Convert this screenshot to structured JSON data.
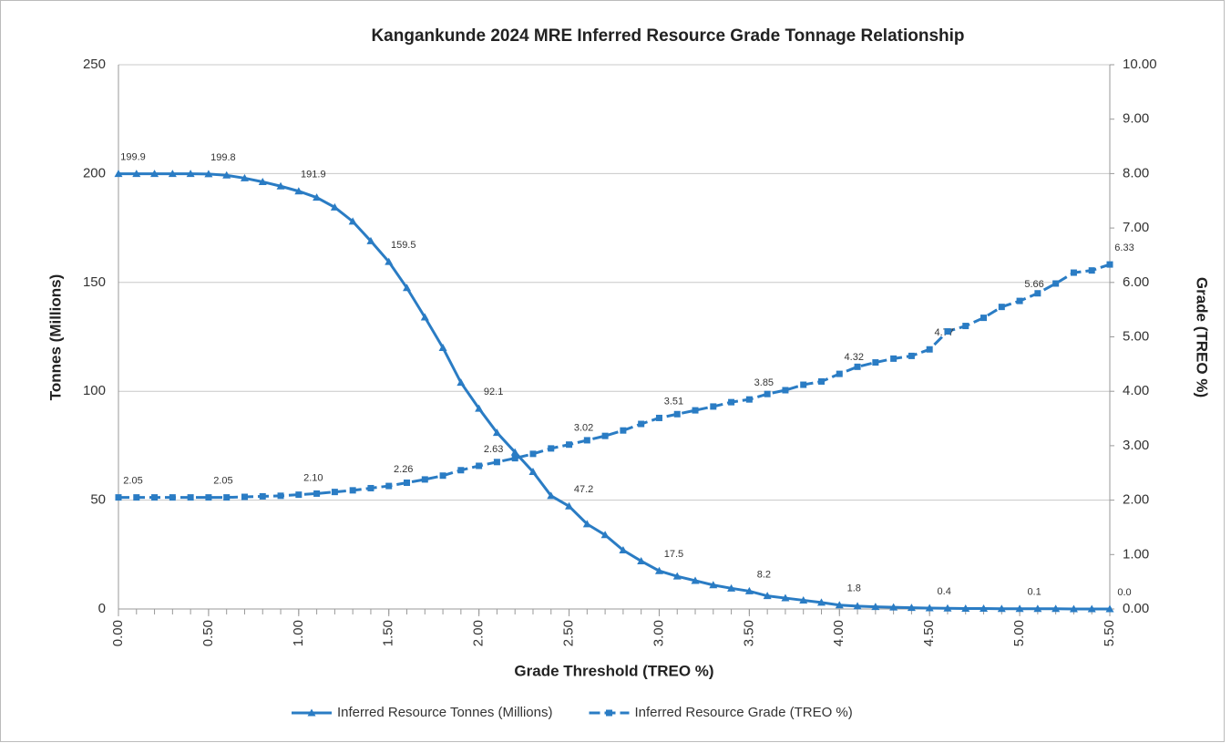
{
  "chart_data": {
    "type": "line",
    "title": "Kangankunde 2024 MRE Inferred Resource Grade Tonnage Relationship",
    "xlabel": "Grade Threshold (TREO %)",
    "ylabel": "Tonnes (Millions)",
    "y2label": "Grade (TREO %)",
    "x": [
      0,
      0.1,
      0.2,
      0.3,
      0.4,
      0.5,
      0.6,
      0.7,
      0.8,
      0.9,
      1,
      1.1,
      1.2,
      1.3,
      1.4,
      1.5,
      1.6,
      1.7,
      1.8,
      1.9,
      2,
      2.1,
      2.2,
      2.3,
      2.4,
      2.5,
      2.6,
      2.7,
      2.8,
      2.9,
      3,
      3.1,
      3.2,
      3.3,
      3.4,
      3.5,
      3.6,
      3.7,
      3.8,
      3.9,
      4,
      4.1,
      4.2,
      4.3,
      4.4,
      4.5,
      4.6,
      4.7,
      4.8,
      4.9,
      5,
      5.1,
      5.2,
      5.3,
      5.4,
      5.5
    ],
    "xlim": [
      0,
      5.5
    ],
    "xticks": [
      {
        "value": 0,
        "label": "0.00"
      },
      {
        "value": 0.5,
        "label": "0.50"
      },
      {
        "value": 1,
        "label": "1.00"
      },
      {
        "value": 1.5,
        "label": "1.50"
      },
      {
        "value": 2,
        "label": "2.00"
      },
      {
        "value": 2.5,
        "label": "2.50"
      },
      {
        "value": 3,
        "label": "3.00"
      },
      {
        "value": 3.5,
        "label": "3.50"
      },
      {
        "value": 4,
        "label": "4.00"
      },
      {
        "value": 4.5,
        "label": "4.50"
      },
      {
        "value": 5,
        "label": "5.00"
      },
      {
        "value": 5.5,
        "label": "5.50"
      }
    ],
    "ylim": [
      0,
      250
    ],
    "yticks": [
      0,
      50,
      100,
      150,
      200,
      250
    ],
    "y2lim": [
      0,
      10
    ],
    "y2ticks": [
      {
        "value": 0,
        "label": "0.00"
      },
      {
        "value": 1,
        "label": "1.00"
      },
      {
        "value": 2,
        "label": "2.00"
      },
      {
        "value": 3,
        "label": "3.00"
      },
      {
        "value": 4,
        "label": "4.00"
      },
      {
        "value": 5,
        "label": "5.00"
      },
      {
        "value": 6,
        "label": "6.00"
      },
      {
        "value": 7,
        "label": "7.00"
      },
      {
        "value": 8,
        "label": "8.00"
      },
      {
        "value": 9,
        "label": "9.00"
      },
      {
        "value": 10,
        "label": "10.00"
      }
    ],
    "grid": true,
    "legend": "bottom",
    "series": [
      {
        "name": "Inferred Resource Tonnes (Millions)",
        "color": "#2a7cc4",
        "marker": "triangle",
        "dash": false,
        "values": [
          199.9,
          199.9,
          199.9,
          199.9,
          199.9,
          199.8,
          199.2,
          197.9,
          196.2,
          194.2,
          191.9,
          189,
          184.5,
          178,
          169,
          159.5,
          147.5,
          134,
          120,
          104,
          92.1,
          81,
          72,
          63,
          52,
          47.2,
          39,
          34,
          27,
          22,
          17.5,
          15,
          13,
          11,
          9.5,
          8.2,
          6,
          5,
          4,
          3,
          1.8,
          1.3,
          1,
          0.8,
          0.6,
          0.4,
          0.3,
          0.2,
          0.2,
          0.1,
          0.1,
          0.1,
          0.1,
          0,
          0,
          0
        ],
        "value_labels": [
          "199.9",
          null,
          null,
          null,
          null,
          "199.8",
          null,
          null,
          null,
          null,
          "191.9",
          null,
          null,
          null,
          null,
          "159.5",
          null,
          null,
          null,
          null,
          "92.1",
          null,
          null,
          null,
          null,
          "47.2",
          null,
          null,
          null,
          null,
          "17.5",
          null,
          null,
          null,
          null,
          "8.2",
          null,
          null,
          null,
          null,
          "1.8",
          null,
          null,
          null,
          null,
          "0.4",
          null,
          null,
          null,
          null,
          "0.1",
          null,
          null,
          null,
          null,
          "0.0"
        ]
      },
      {
        "name": "Inferred Resource Grade (TREO %)",
        "color": "#2a7cc4",
        "marker": "square",
        "dash": true,
        "axis": "y2",
        "values": [
          2.05,
          2.05,
          2.05,
          2.05,
          2.05,
          2.05,
          2.05,
          2.06,
          2.07,
          2.08,
          2.1,
          2.12,
          2.15,
          2.18,
          2.22,
          2.26,
          2.32,
          2.38,
          2.45,
          2.55,
          2.63,
          2.7,
          2.77,
          2.85,
          2.95,
          3.02,
          3.1,
          3.18,
          3.28,
          3.4,
          3.51,
          3.58,
          3.65,
          3.72,
          3.8,
          3.85,
          3.95,
          4.02,
          4.12,
          4.18,
          4.32,
          4.45,
          4.53,
          4.6,
          4.65,
          4.77,
          5.1,
          5.2,
          5.35,
          5.55,
          5.66,
          5.8,
          5.98,
          6.18,
          6.22,
          6.33
        ],
        "value_labels": [
          "2.05",
          null,
          null,
          null,
          null,
          "2.05",
          null,
          null,
          null,
          null,
          "2.10",
          null,
          null,
          null,
          null,
          "2.26",
          null,
          null,
          null,
          null,
          "2.63",
          null,
          null,
          null,
          null,
          "3.02",
          null,
          null,
          null,
          null,
          "3.51",
          null,
          null,
          null,
          null,
          "3.85",
          null,
          null,
          null,
          null,
          "4.32",
          null,
          null,
          null,
          null,
          "4.77",
          null,
          null,
          null,
          null,
          "5.66",
          null,
          null,
          null,
          null,
          "6.33"
        ]
      }
    ]
  }
}
